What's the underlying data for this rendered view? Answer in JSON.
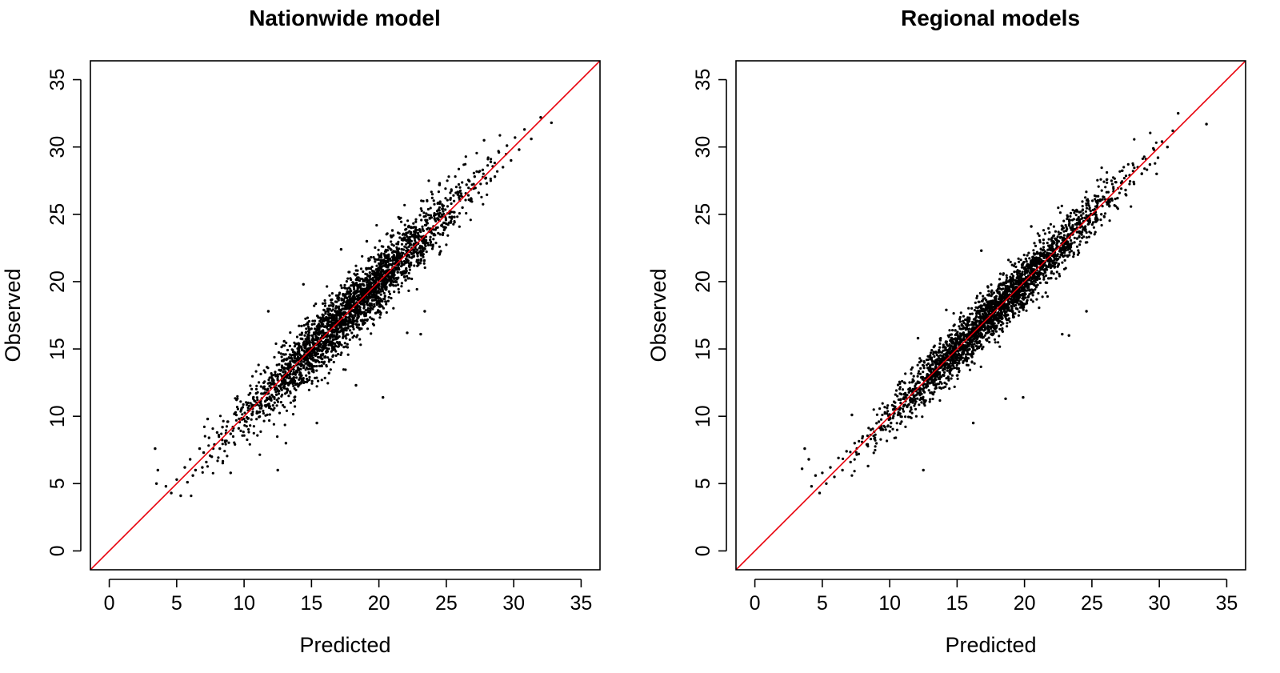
{
  "chart_data": [
    {
      "type": "scatter",
      "title": "Nationwide model",
      "xlabel": "Predicted",
      "ylabel": "Observed",
      "xlim": [
        -1.4,
        36.4
      ],
      "ylim": [
        -1.4,
        36.4
      ],
      "x_ticks": [
        0,
        5,
        10,
        15,
        20,
        25,
        30,
        35
      ],
      "y_ticks": [
        0,
        5,
        10,
        15,
        20,
        25,
        30,
        35
      ],
      "x_tick_labels": [
        "0",
        "5",
        "10",
        "15",
        "20",
        "25",
        "30",
        "35"
      ],
      "y_tick_labels": [
        "0",
        "5",
        "10",
        "15",
        "20",
        "25",
        "30",
        "35"
      ],
      "reference_line": {
        "slope": 1,
        "intercept": 0,
        "color": "#e8000b"
      },
      "point_color": "#000000",
      "grid": false,
      "legend": "none",
      "points": {
        "x": [
          3.4,
          3.5,
          3.6,
          4.2,
          4.6,
          5.0,
          5.3,
          5.6,
          5.8,
          6.0,
          6.2,
          6.4,
          6.7,
          6.9,
          7.0,
          7.2,
          7.4,
          7.6,
          7.8,
          8.0,
          8.2,
          8.4,
          8.6,
          8.8,
          9.0,
          9.3,
          9.6,
          9.8,
          10.0,
          10.3,
          10.6,
          10.9,
          11.2,
          11.5,
          11.8,
          12.1,
          12.4,
          12.7,
          13.0,
          13.3,
          13.6,
          13.9,
          14.2,
          14.5,
          14.8,
          15.1,
          15.4,
          15.7,
          16.0,
          16.3,
          16.6,
          16.9,
          17.2,
          17.5,
          17.8,
          18.1,
          18.4,
          18.7,
          19.0,
          19.3,
          19.6,
          19.9,
          20.2,
          20.5,
          20.8,
          21.1,
          21.4,
          21.7,
          22.0,
          22.3,
          22.6,
          22.9,
          23.2,
          23.5,
          23.8,
          24.1,
          24.4,
          24.7,
          25.0,
          25.3,
          25.6,
          25.9,
          26.2,
          26.5,
          26.8,
          27.1,
          27.4,
          27.7,
          28.0,
          28.3,
          28.6,
          28.9,
          29.2,
          29.5,
          29.8,
          30.1,
          30.4,
          30.8,
          31.3,
          32.0,
          32.8,
          7.3,
          9.0,
          12.5,
          13.1,
          15.4,
          16.3,
          18.3,
          20.3,
          22.1,
          23.1,
          23.4,
          26.0,
          11.8,
          14.4,
          17.2,
          19.1,
          21.0,
          24.5,
          27.8
        ],
        "y": [
          7.6,
          5.0,
          6.0,
          4.8,
          4.3,
          5.3,
          4.1,
          6.2,
          5.1,
          6.8,
          5.6,
          6.0,
          7.6,
          6.2,
          7.3,
          6.6,
          8.4,
          7.0,
          7.9,
          8.8,
          7.6,
          9.2,
          8.1,
          9.6,
          8.7,
          10.2,
          9.1,
          10.5,
          9.8,
          11.0,
          10.1,
          11.7,
          10.6,
          12.2,
          11.3,
          12.8,
          11.6,
          13.4,
          12.4,
          13.9,
          12.8,
          14.6,
          13.5,
          15.1,
          14.0,
          15.8,
          14.6,
          16.3,
          15.4,
          17.0,
          15.9,
          17.5,
          16.6,
          18.2,
          17.1,
          18.9,
          17.7,
          19.3,
          18.5,
          20.1,
          19.0,
          20.6,
          19.6,
          21.3,
          20.2,
          21.9,
          20.7,
          22.4,
          21.4,
          23.1,
          21.9,
          23.6,
          22.6,
          24.2,
          23.1,
          24.9,
          23.6,
          25.4,
          24.3,
          26.1,
          24.8,
          26.6,
          25.5,
          27.2,
          26.0,
          27.8,
          26.6,
          28.3,
          27.3,
          28.9,
          27.8,
          29.6,
          28.5,
          30.1,
          29.0,
          30.7,
          29.8,
          31.3,
          30.6,
          32.2,
          31.8,
          9.8,
          5.8,
          6.0,
          8.0,
          9.5,
          13.2,
          12.3,
          11.4,
          16.2,
          16.1,
          17.8,
          26.1,
          17.8,
          19.8,
          22.4,
          23.0,
          23.8,
          27.3,
          30.5
        ]
      },
      "band": {
        "spread": 1.15,
        "x_range": [
          6,
          30
        ]
      }
    },
    {
      "type": "scatter",
      "title": "Regional models",
      "xlabel": "Predicted",
      "ylabel": "Observed",
      "xlim": [
        -1.4,
        36.4
      ],
      "ylim": [
        -1.4,
        36.4
      ],
      "x_ticks": [
        0,
        5,
        10,
        15,
        20,
        25,
        30,
        35
      ],
      "y_ticks": [
        0,
        5,
        10,
        15,
        20,
        25,
        30,
        35
      ],
      "x_tick_labels": [
        "0",
        "5",
        "10",
        "15",
        "20",
        "25",
        "30",
        "35"
      ],
      "y_tick_labels": [
        "0",
        "5",
        "10",
        "15",
        "20",
        "25",
        "30",
        "35"
      ],
      "reference_line": {
        "slope": 1,
        "intercept": 0,
        "color": "#e8000b"
      },
      "point_color": "#000000",
      "grid": false,
      "legend": "none",
      "points": {
        "x": [
          3.5,
          3.7,
          4.0,
          4.2,
          4.5,
          4.8,
          5.0,
          5.3,
          5.6,
          5.9,
          6.2,
          6.5,
          6.8,
          7.1,
          7.4,
          7.7,
          8.0,
          8.3,
          8.6,
          8.9,
          9.2,
          9.5,
          9.8,
          10.1,
          10.4,
          10.7,
          11.0,
          11.3,
          11.6,
          11.9,
          12.2,
          12.5,
          12.8,
          13.1,
          13.4,
          13.7,
          14.0,
          14.3,
          14.6,
          14.9,
          15.2,
          15.5,
          15.8,
          16.1,
          16.4,
          16.7,
          17.0,
          17.3,
          17.6,
          17.9,
          18.2,
          18.5,
          18.8,
          19.1,
          19.4,
          19.7,
          20.0,
          20.3,
          20.6,
          20.9,
          21.2,
          21.5,
          21.8,
          22.1,
          22.4,
          22.7,
          23.0,
          23.3,
          23.6,
          23.9,
          24.2,
          24.5,
          24.8,
          25.1,
          25.4,
          25.7,
          26.0,
          26.3,
          26.6,
          26.9,
          27.2,
          27.5,
          27.8,
          28.1,
          28.4,
          28.7,
          29.0,
          29.3,
          29.6,
          29.9,
          30.2,
          30.6,
          31.0,
          31.4,
          33.5,
          7.2,
          8.4,
          12.5,
          16.2,
          18.6,
          19.9,
          22.8,
          23.3,
          24.6,
          29.8,
          12.1,
          14.2,
          16.8,
          20.5
        ],
        "y": [
          6.1,
          7.6,
          6.8,
          4.8,
          5.6,
          4.3,
          5.8,
          5.0,
          6.2,
          5.5,
          6.9,
          6.0,
          7.4,
          6.6,
          8.0,
          7.2,
          8.5,
          7.9,
          9.0,
          8.4,
          9.6,
          9.0,
          10.2,
          9.5,
          10.7,
          10.2,
          11.3,
          10.7,
          11.9,
          11.3,
          12.5,
          11.9,
          13.1,
          12.5,
          13.6,
          13.1,
          14.3,
          13.6,
          14.8,
          14.3,
          15.4,
          14.9,
          16.0,
          15.5,
          16.6,
          16.0,
          17.2,
          16.7,
          17.8,
          17.2,
          18.4,
          17.8,
          19.0,
          18.4,
          19.6,
          19.0,
          20.2,
          19.6,
          20.8,
          20.2,
          21.4,
          20.8,
          21.9,
          21.4,
          22.5,
          22.0,
          23.1,
          22.6,
          23.7,
          23.2,
          24.3,
          23.8,
          24.9,
          24.4,
          25.5,
          25.0,
          26.1,
          25.6,
          26.7,
          26.2,
          27.3,
          26.8,
          27.9,
          27.4,
          28.5,
          28.0,
          29.1,
          28.7,
          29.8,
          29.2,
          30.4,
          30.0,
          31.2,
          32.5,
          31.7,
          10.1,
          6.3,
          6.0,
          9.5,
          11.3,
          11.4,
          16.1,
          16.0,
          17.8,
          28.0,
          15.8,
          17.9,
          22.3,
          24.1
        ]
      },
      "band": {
        "spread": 0.95,
        "x_range": [
          6,
          30
        ]
      }
    }
  ]
}
